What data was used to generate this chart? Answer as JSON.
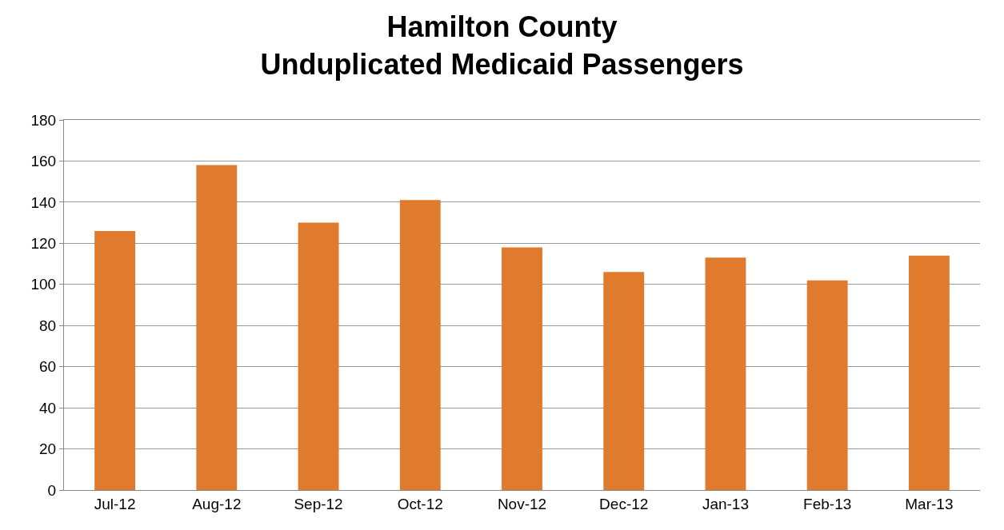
{
  "chart_data": {
    "type": "bar",
    "title": "Hamilton County\nUnduplicated Medicaid Passengers",
    "categories": [
      "Jul-12",
      "Aug-12",
      "Sep-12",
      "Oct-12",
      "Nov-12",
      "Dec-12",
      "Jan-13",
      "Feb-13",
      "Mar-13"
    ],
    "values": [
      126,
      158,
      130,
      141,
      118,
      106,
      113,
      102,
      114
    ],
    "color": "#e07b2e",
    "ylim": [
      0,
      180
    ],
    "yticks": [
      0,
      20,
      40,
      60,
      80,
      100,
      120,
      140,
      160,
      180
    ],
    "grid": "y"
  }
}
